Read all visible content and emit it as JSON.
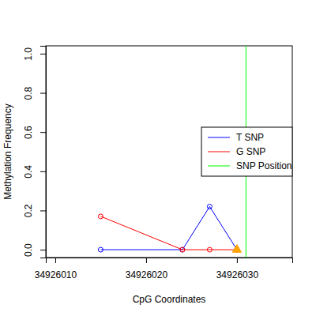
{
  "chart_data": {
    "type": "line",
    "x_label": "CpG Coordinates",
    "y_label": "Methylation Frequency",
    "xlim": [
      34926008.96,
      34926036.1
    ],
    "ylim": [
      -0.04,
      1.04
    ],
    "xticks": [
      34926010,
      34926020,
      34926030
    ],
    "yticks": [
      {
        "value": 0,
        "label": "0.0"
      },
      {
        "value": 0.2,
        "label": "0.2"
      },
      {
        "value": 0.4,
        "label": "0.4"
      },
      {
        "value": 0.6,
        "label": "0.6"
      },
      {
        "value": 0.8,
        "label": "0.8"
      },
      {
        "value": 1,
        "label": "1.0"
      }
    ],
    "legend": "right",
    "marker": "circle",
    "series": [
      {
        "name": "T SNP",
        "color": "#0000ff",
        "x": [
          34926015,
          34926024,
          34926027,
          34926030
        ],
        "values": [
          0,
          0,
          0.22,
          0
        ]
      },
      {
        "name": "G SNP",
        "color": "#ff0000",
        "x": [
          34926015,
          34926024,
          34926027,
          34926030
        ],
        "values": [
          0.17,
          0,
          0,
          0
        ]
      }
    ],
    "vlines": [
      {
        "name": "SNP Position",
        "x": 34926031,
        "color": "#00ff00"
      }
    ],
    "highlight": {
      "x": 34926030,
      "y": 0,
      "color": "orange",
      "marker": "triangle"
    }
  }
}
